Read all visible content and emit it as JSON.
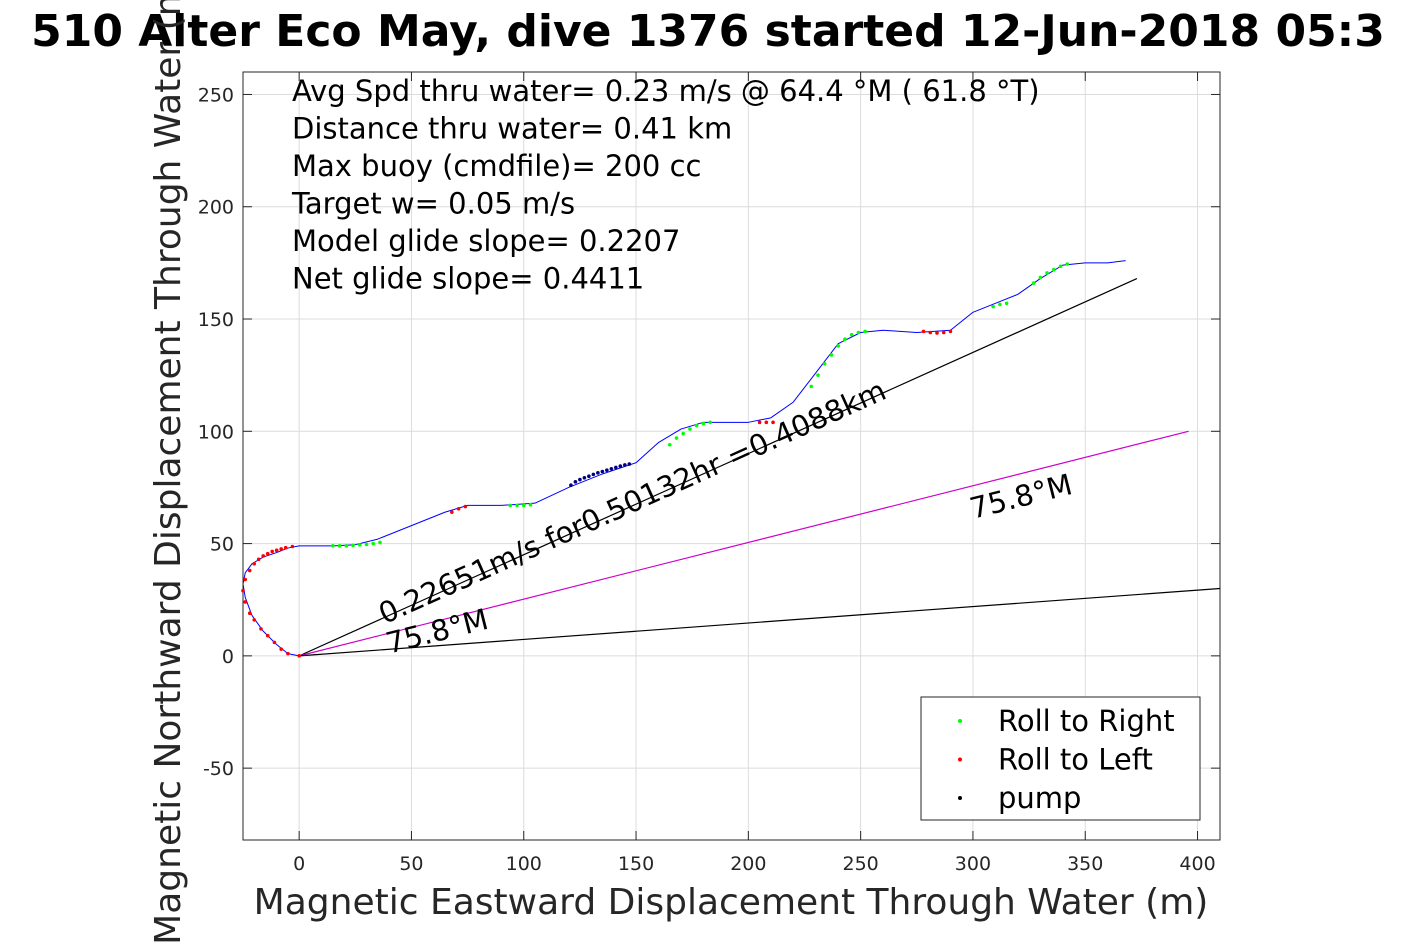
{
  "chart_data": {
    "type": "line",
    "title": "510 Alter Eco May, dive 1376 started 12-Jun-2018 05:3",
    "xlabel": "Magnetic Eastward Displacement Through Water (m)",
    "ylabel": "Magnetic Northward Displacement Through Water (m)",
    "xlim": [
      -25,
      410
    ],
    "ylim": [
      -82,
      260
    ],
    "xticks": [
      0,
      50,
      100,
      150,
      200,
      250,
      300,
      350,
      400
    ],
    "yticks": [
      -50,
      0,
      50,
      100,
      150,
      200,
      250
    ],
    "xticklabels": [
      "0",
      "50",
      "100",
      "150",
      "200",
      "250",
      "300",
      "350",
      "400"
    ],
    "yticklabels": [
      "-50",
      "0",
      "50",
      "100",
      "150",
      "200",
      "250"
    ],
    "grid": true,
    "legend_placement": "bottom-right",
    "info_text": [
      "Avg Spd thru water=  0.23 m/s @  64.4 °M ( 61.8 °T)",
      "Distance thru water=  0.41 km",
      "Max buoy (cmdfile)= 200 cc",
      "Target w= 0.05 m/s",
      "Model glide slope= 0.2207",
      "Net glide slope= 0.4411"
    ],
    "annotations": [
      {
        "text": "0.22651m/s for0.50132hr =0.4088km",
        "x": 38,
        "y": 14
      },
      {
        "text": "75.8°M",
        "x": 40,
        "y": 1
      },
      {
        "text": "75.8°M",
        "x": 300,
        "y": 61
      }
    ],
    "series": [
      {
        "name": "",
        "color": "#0000ff",
        "x": [
          0,
          -5,
          -10,
          -16,
          -21,
          -24,
          -25,
          -24,
          -21,
          -16,
          -10,
          -5,
          0,
          5,
          15,
          25,
          35,
          50,
          65,
          75,
          90,
          105,
          120,
          135,
          150,
          160,
          170,
          180,
          190,
          200,
          210,
          220,
          230,
          240,
          250,
          260,
          275,
          290,
          300,
          310,
          320,
          330,
          340,
          350,
          360,
          368
        ],
        "y": [
          0,
          1,
          5,
          11,
          18,
          26,
          32,
          37,
          41,
          44,
          46,
          48,
          49,
          49,
          49,
          49.5,
          52,
          58,
          64,
          67,
          67,
          68,
          75,
          81,
          86,
          95,
          101,
          104,
          104,
          104,
          106,
          113,
          126,
          139,
          144,
          145,
          144,
          145,
          153,
          157,
          161,
          168,
          174,
          175,
          175,
          176
        ]
      },
      {
        "name": "",
        "color": "#000000",
        "x": [
          0,
          373
        ],
        "y": [
          0,
          168
        ]
      },
      {
        "name": "",
        "color": "#cc00cc",
        "x": [
          0,
          396
        ],
        "y": [
          0,
          100
        ]
      },
      {
        "name": "",
        "color": "#000000",
        "x": [
          0,
          410
        ],
        "y": [
          0,
          30
        ]
      }
    ],
    "markers": {
      "roll_right": {
        "x": [
          15,
          18,
          21,
          24,
          27,
          30,
          33,
          36,
          94,
          97,
          100,
          103,
          165,
          168,
          171,
          174,
          177,
          180,
          183,
          228,
          231,
          234,
          237,
          240,
          243,
          246,
          249,
          252,
          309,
          312,
          315,
          327,
          330,
          333,
          336,
          339,
          342
        ],
        "y": [
          49,
          49,
          49,
          49.2,
          49.4,
          49.6,
          50,
          50.5,
          67,
          67,
          67,
          67.3,
          94,
          97,
          99,
          101,
          102.5,
          103.5,
          104,
          120,
          125,
          130,
          134,
          138,
          141,
          143,
          144,
          144.5,
          155.5,
          156.5,
          157,
          166,
          168.5,
          170.5,
          172,
          173.5,
          174.5
        ]
      },
      "roll_left": {
        "x": [
          -5,
          -8,
          -11,
          -14,
          -17,
          -20,
          -22,
          -24,
          -25,
          -24,
          -22,
          -20,
          -18,
          -16,
          -14,
          -12,
          -10,
          -8,
          -6,
          -3,
          0,
          68,
          71,
          74,
          205,
          208,
          211,
          278,
          281,
          284,
          287,
          290
        ],
        "y": [
          1,
          3,
          6,
          9,
          12,
          16,
          19,
          24,
          29,
          34,
          38,
          41,
          43,
          44.5,
          45.5,
          46.5,
          47,
          47.6,
          48.2,
          48.7,
          0,
          64,
          65.5,
          66.5,
          104,
          104,
          104,
          144.5,
          144,
          143.8,
          144,
          144.5
        ]
      },
      "pump": {
        "x": [
          121,
          123,
          125,
          127,
          129,
          131,
          133,
          135,
          137,
          139,
          141,
          143,
          145,
          147
        ],
        "y": [
          76,
          77.5,
          78.5,
          79.3,
          80,
          80.8,
          81.5,
          82.1,
          82.7,
          83.3,
          83.9,
          84.5,
          85,
          85.4
        ]
      }
    },
    "legend": [
      {
        "label": "Roll to Right",
        "color": "#00ff00"
      },
      {
        "label": "Roll to Left",
        "color": "#ff0000"
      },
      {
        "label": "pump",
        "color": "#000000"
      }
    ]
  }
}
